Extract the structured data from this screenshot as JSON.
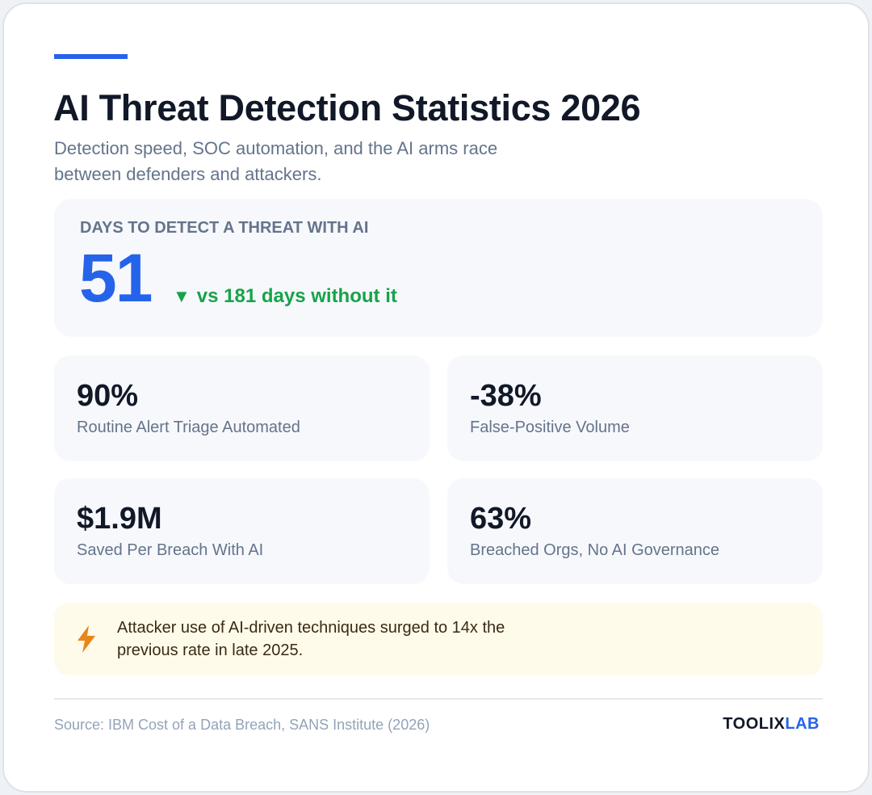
{
  "title": "AI Threat Detection Statistics 2026",
  "subtitle": "Detection speed, SOC automation, and the AI arms race between defenders and attackers.",
  "hero": {
    "label": "DAYS TO DETECT A THREAT WITH AI",
    "value": "51",
    "delta_arrow": "▼",
    "delta_text": "vs 181 days without it"
  },
  "stats": [
    {
      "value": "90%",
      "label": "Routine Alert Triage Automated"
    },
    {
      "value": "-38%",
      "label": "False-Positive Volume"
    },
    {
      "value": "$1.9M",
      "label": "Saved Per Breach With AI"
    },
    {
      "value": "63%",
      "label": "Breached Orgs, No AI Governance"
    }
  ],
  "note": {
    "icon": "lightning-bolt-icon",
    "text": "Attacker use of AI-driven techniques surged to 14x the previous rate in late 2025."
  },
  "footer": {
    "source": "Source: IBM Cost of a Data Breach, SANS Institute (2026)",
    "brand_part1": "TOOLIX",
    "brand_part2": "LAB"
  },
  "colors": {
    "accent": "#2563eb",
    "positive": "#16a34a",
    "note_bg": "#fefbea",
    "bolt": "#e8861a"
  }
}
